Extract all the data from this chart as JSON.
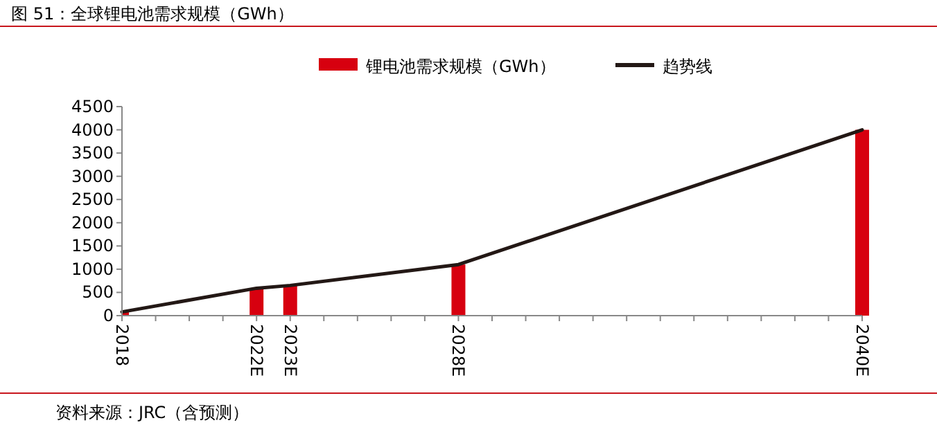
{
  "chart_data": {
    "type": "bar",
    "title": "图 51：全球锂电池需求规模（GWh）",
    "x": [
      2018,
      2022,
      2023,
      2028,
      2040
    ],
    "series": [
      {
        "name": "锂电池需求规模（GWh）",
        "color": "#d7000f",
        "values": [
          80,
          590,
          650,
          1100,
          4000
        ]
      },
      {
        "name": "趋势线",
        "type": "line",
        "color": "#231815",
        "x": [
          2018,
          2022,
          2023,
          2028,
          2040
        ],
        "values": [
          80,
          590,
          650,
          1100,
          4000
        ]
      }
    ],
    "xlim": [
      2018,
      2040
    ],
    "xticks": [
      {
        "value": 2018,
        "label": "2018"
      },
      {
        "value": 2019,
        "label": null
      },
      {
        "value": 2020,
        "label": null
      },
      {
        "value": 2021,
        "label": null
      },
      {
        "value": 2022,
        "label": "2022E"
      },
      {
        "value": 2023,
        "label": "2023E"
      },
      {
        "value": 2024,
        "label": null
      },
      {
        "value": 2025,
        "label": null
      },
      {
        "value": 2026,
        "label": null
      },
      {
        "value": 2027,
        "label": null
      },
      {
        "value": 2028,
        "label": "2028E"
      },
      {
        "value": 2029,
        "label": null
      },
      {
        "value": 2030,
        "label": null
      },
      {
        "value": 2031,
        "label": null
      },
      {
        "value": 2032,
        "label": null
      },
      {
        "value": 2033,
        "label": null
      },
      {
        "value": 2034,
        "label": null
      },
      {
        "value": 2035,
        "label": null
      },
      {
        "value": 2036,
        "label": null
      },
      {
        "value": 2037,
        "label": null
      },
      {
        "value": 2038,
        "label": null
      },
      {
        "value": 2039,
        "label": null
      },
      {
        "value": 2040,
        "label": "2040E"
      }
    ],
    "ylim": [
      0,
      4500
    ],
    "yticks": [
      0,
      500,
      1000,
      1500,
      2000,
      2500,
      3000,
      3500,
      4000,
      4500
    ],
    "legend": "top",
    "grid": false,
    "annotations": [
      "资料来源：JRC（含预测）"
    ]
  }
}
